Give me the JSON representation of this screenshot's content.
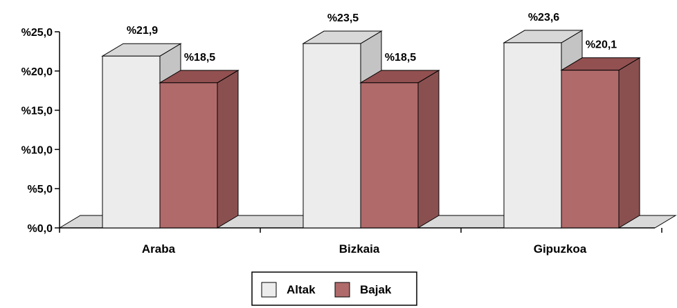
{
  "chart_data": {
    "type": "bar",
    "title": "",
    "xlabel": "",
    "ylabel": "",
    "categories": [
      "Araba",
      "Bizkaia",
      "Gipuzkoa"
    ],
    "series": [
      {
        "name": "Altak",
        "values": [
          21.9,
          23.5,
          23.6
        ],
        "labels": [
          "%21,9",
          "%23,5",
          "%23,6"
        ],
        "color": "#ececec"
      },
      {
        "name": "Bajak",
        "values": [
          18.5,
          18.5,
          20.1
        ],
        "labels": [
          "%18,5",
          "%18,5",
          "%20,1"
        ],
        "color": "#b06a6a"
      }
    ],
    "ylim": [
      0,
      25
    ],
    "yticks": [
      0,
      5,
      10,
      15,
      20,
      25
    ],
    "ytick_labels": [
      "%0,0",
      "%5,0",
      "%10,0",
      "%15,0",
      "%20,0",
      "%25,0"
    ],
    "grid": false,
    "legend_position": "bottom",
    "style": "3d-clustered-bar"
  }
}
